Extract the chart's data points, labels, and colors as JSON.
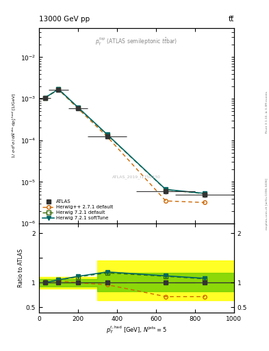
{
  "title_left": "13000 GeV pp",
  "title_right": "tt̅",
  "watermark": "ATLAS_2019_I1750330",
  "right_label": "mcplots.cern.ch [arXiv:1306.3436]",
  "rivet_label": "Rivet 3.1.10, ≥ 3.3M events",
  "ratio_ylabel": "Ratio to ATLAS",
  "x_data": [
    30,
    100,
    200,
    350,
    650,
    850
  ],
  "x_err_lo": [
    30,
    50,
    50,
    100,
    150,
    150
  ],
  "x_err_hi": [
    30,
    50,
    50,
    100,
    150,
    150
  ],
  "atlas_y": [
    0.00105,
    0.00165,
    0.0006,
    0.000125,
    6e-06,
    5e-06
  ],
  "atlas_y_err_lo": [
    8e-05,
    0.0001,
    4e-05,
    1.2e-05,
    8e-07,
    7e-07
  ],
  "atlas_y_err_hi": [
    8e-05,
    0.0001,
    4e-05,
    1.2e-05,
    8e-07,
    7e-07
  ],
  "hwpp_y": [
    0.00105,
    0.00165,
    0.00058,
    0.000122,
    3.5e-06,
    3.2e-06
  ],
  "hw721d_y": [
    0.00105,
    0.0017,
    0.00062,
    0.000135,
    6.5e-06,
    5.2e-06
  ],
  "hw721s_y": [
    0.00105,
    0.0017,
    0.00062,
    0.000138,
    6.6e-06,
    5.3e-06
  ],
  "ratio_hwpp_y": [
    1.02,
    1.04,
    1.0,
    0.96,
    0.72,
    0.72
  ],
  "ratio_hw721d_y": [
    1.0,
    1.06,
    1.12,
    1.2,
    1.13,
    1.08
  ],
  "ratio_hw721s_y": [
    1.0,
    1.06,
    1.13,
    1.22,
    1.14,
    1.09
  ],
  "x_band_edges": [
    0,
    60,
    150,
    300,
    450,
    1000
  ],
  "band_yellow_lo": [
    0.88,
    0.88,
    0.88,
    0.65,
    0.65
  ],
  "band_yellow_hi": [
    1.12,
    1.12,
    1.12,
    1.45,
    1.45
  ],
  "band_green_lo": [
    0.93,
    0.93,
    0.93,
    0.82,
    0.82
  ],
  "band_green_hi": [
    1.07,
    1.07,
    1.07,
    1.2,
    1.2
  ],
  "color_atlas": "#333333",
  "color_hwpp": "#cc6600",
  "color_hw721d": "#336600",
  "color_hw721s": "#006666",
  "ylim_main": [
    1e-06,
    0.05
  ],
  "ylim_ratio": [
    0.4,
    2.2
  ],
  "xlim": [
    0,
    1000
  ]
}
